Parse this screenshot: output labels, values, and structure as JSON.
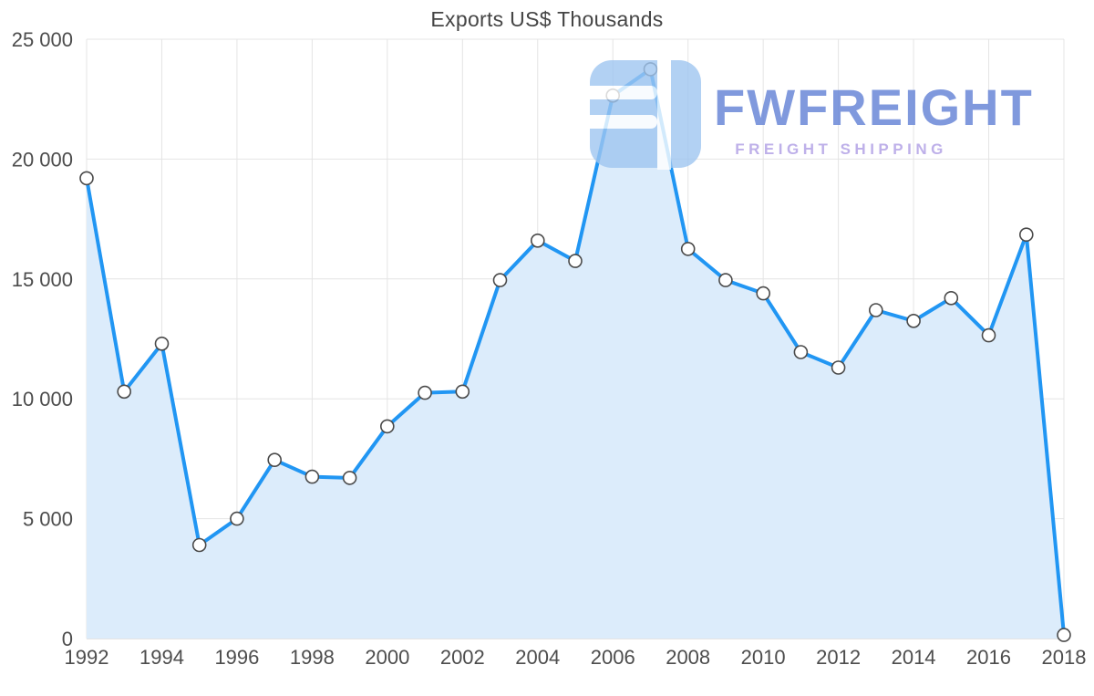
{
  "chart_data": {
    "type": "line",
    "title": "Exports US$ Thousands",
    "xlabel": "",
    "ylabel": "",
    "x": [
      1992,
      1993,
      1994,
      1995,
      1996,
      1997,
      1998,
      1999,
      2000,
      2001,
      2002,
      2003,
      2004,
      2005,
      2006,
      2007,
      2008,
      2009,
      2010,
      2011,
      2012,
      2013,
      2014,
      2015,
      2016,
      2017,
      2018
    ],
    "values": [
      19200,
      10300,
      12300,
      3900,
      5000,
      7450,
      6750,
      6700,
      8850,
      10250,
      10300,
      14950,
      16600,
      15750,
      22650,
      23750,
      16250,
      14950,
      14400,
      11950,
      11300,
      13700,
      13250,
      14200,
      12650,
      16850,
      150
    ],
    "xlim": [
      1992,
      2018
    ],
    "ylim": [
      0,
      25000
    ],
    "x_ticks": [
      1992,
      1994,
      1996,
      1998,
      2000,
      2002,
      2004,
      2006,
      2008,
      2010,
      2012,
      2014,
      2016,
      2018
    ],
    "x_tick_labels": [
      "1992",
      "1994",
      "1996",
      "1998",
      "2000",
      "2002",
      "2004",
      "2006",
      "2008",
      "2010",
      "2012",
      "2014",
      "2016",
      "2018"
    ],
    "y_ticks": [
      0,
      5000,
      10000,
      15000,
      20000,
      25000
    ],
    "y_tick_labels": [
      "0",
      "5 000",
      "10 000",
      "15 000",
      "20 000",
      "25 000"
    ],
    "grid": true,
    "legend": false,
    "line_color": "#2196f3",
    "area_color": "#dcecfb",
    "marker_fill": "#ffffff",
    "marker_stroke": "#4a4a4a",
    "grid_color": "#e4e4e4",
    "axis_color": "#c9c9c9",
    "tick_label_color": "#4d4d4d"
  },
  "watermark": {
    "brand": "FWFREIGHT",
    "tagline": "FREIGHT SHIPPING",
    "brand_color": "#6b88d8",
    "tagline_color": "#b3a3e6",
    "logo_color": "#9fc6f1",
    "logo_icon": "fwfreight-logo"
  }
}
